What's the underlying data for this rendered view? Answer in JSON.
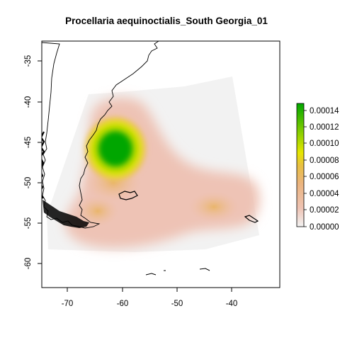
{
  "title": "Procellaria aequinoctialis_South Georgia_01",
  "x_ticks": [
    "-70",
    "-60",
    "-50",
    "-40"
  ],
  "y_ticks": [
    "-35",
    "-40",
    "-45",
    "-50",
    "-55",
    "-60"
  ],
  "legend": {
    "labels": [
      "0.00014",
      "0.00012",
      "0.00010",
      "0.00008",
      "0.00006",
      "0.00004",
      "0.00002",
      "0.00000"
    ],
    "colors": [
      "#00A600",
      "#63C600",
      "#E6E600",
      "#EAB64E",
      "#EEB99F",
      "#F2F2F2"
    ]
  },
  "colors": {
    "background_region": "#F2F2F2",
    "density_low": "#EEB99F",
    "density_mid": "#EAB64E",
    "density_high": "#00A600"
  }
}
